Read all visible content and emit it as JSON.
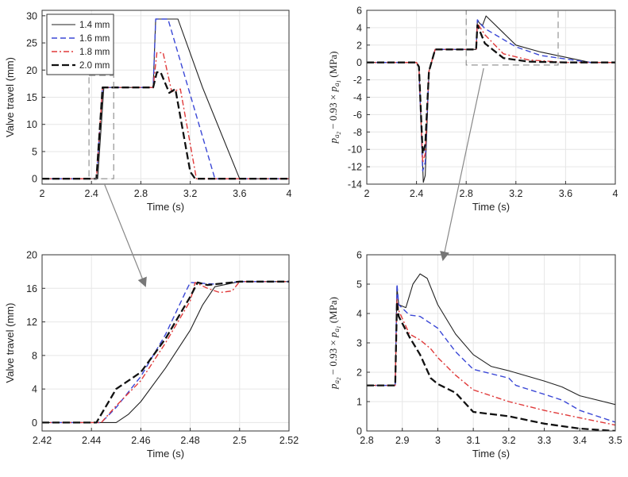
{
  "chart_data": [
    {
      "type": "line",
      "panel": "top-left",
      "xlabel": "Time (s)",
      "ylabel": "Valve travel (mm)",
      "xlim": [
        2,
        4
      ],
      "ylim": [
        -1,
        31
      ],
      "xticks": [
        2,
        2.4,
        2.8,
        3.2,
        3.6,
        4
      ],
      "xtick_labels": [
        "2",
        "2.4",
        "2.8",
        "3.2",
        "3.6",
        "4"
      ],
      "yticks": [
        0,
        5,
        10,
        15,
        20,
        25,
        30
      ],
      "ytick_labels": [
        "0",
        "5",
        "10",
        "15",
        "20",
        "25",
        "30"
      ],
      "legend": {
        "position": "top-left"
      },
      "zoom_box": {
        "x": [
          2.38,
          2.58
        ],
        "y": [
          0,
          19
        ]
      },
      "series": [
        {
          "name": "1.4 mm",
          "color": "#222222",
          "dash": "solid",
          "x": [
            2,
            2.45,
            2.5,
            2.9,
            2.92,
            3.1,
            3.3,
            3.6,
            3.62,
            4
          ],
          "y": [
            0,
            0,
            16.8,
            16.8,
            29.4,
            29.4,
            16.8,
            0,
            0,
            0
          ]
        },
        {
          "name": "1.6 mm",
          "color": "#3b48d6",
          "dash": "dashed",
          "x": [
            2,
            2.44,
            2.49,
            2.9,
            2.92,
            3.02,
            3.4,
            3.44,
            4
          ],
          "y": [
            0,
            0,
            16.8,
            16.8,
            29.4,
            29.4,
            0,
            0,
            0
          ]
        },
        {
          "name": "1.8 mm",
          "color": "#e03a3a",
          "dash": "dashdot",
          "x": [
            2,
            2.44,
            2.49,
            2.9,
            2.93,
            2.98,
            3.05,
            3.12,
            3.25,
            4
          ],
          "y": [
            0,
            0,
            16.8,
            16.8,
            23.2,
            23.2,
            16,
            16.5,
            0,
            0
          ]
        },
        {
          "name": "2.0 mm",
          "color": "#111111",
          "dash": "longdash",
          "x": [
            2,
            2.44,
            2.49,
            2.9,
            2.93,
            2.96,
            3.03,
            3.08,
            3.2,
            3.24,
            4
          ],
          "y": [
            0,
            0,
            16.8,
            16.8,
            19.6,
            19.6,
            15.8,
            16.5,
            1.3,
            0,
            0
          ]
        }
      ]
    },
    {
      "type": "line",
      "panel": "top-right",
      "xlabel": "Time (s)",
      "ylabel_parts": {
        "p1": "p",
        "sub1": "a",
        "sub1b": "2",
        "mid": " − 0.93 × ",
        "p2": "p",
        "sub2": "a",
        "sub2b": "1",
        "unit": " (MPa)"
      },
      "xlim": [
        2,
        4
      ],
      "ylim": [
        -14,
        6
      ],
      "xticks": [
        2,
        2.4,
        2.8,
        3.2,
        3.6,
        4
      ],
      "xtick_labels": [
        "2",
        "2.4",
        "2.8",
        "3.2",
        "3.6",
        "4"
      ],
      "yticks": [
        -14,
        -12,
        -10,
        -8,
        -6,
        -4,
        -2,
        0,
        2,
        4,
        6
      ],
      "ytick_labels": [
        "-14",
        "-12",
        "-10",
        "-8",
        "-6",
        "-4",
        "-2",
        "0",
        "2",
        "4",
        "6"
      ],
      "zoom_box": {
        "x": [
          2.8,
          3.54
        ],
        "y": [
          -0.3,
          6
        ]
      },
      "series": [
        {
          "name": "1.4 mm",
          "color": "#222222",
          "dash": "solid",
          "x": [
            2,
            2.4,
            2.42,
            2.455,
            2.47,
            2.5,
            2.55,
            2.88,
            2.89,
            2.93,
            2.96,
            3.2,
            3.4,
            3.8,
            4
          ],
          "y": [
            0,
            0,
            -0.5,
            -13.8,
            -13,
            -1,
            1.5,
            1.5,
            4.8,
            4.2,
            5.35,
            2,
            1.2,
            0,
            0
          ]
        },
        {
          "name": "1.6 mm",
          "color": "#3b48d6",
          "dash": "dashed",
          "x": [
            2,
            2.4,
            2.42,
            2.45,
            2.47,
            2.5,
            2.55,
            2.88,
            2.89,
            2.95,
            3.2,
            3.4,
            3.8,
            4
          ],
          "y": [
            0,
            0,
            -0.5,
            -12.5,
            -11.5,
            -1,
            1.5,
            1.5,
            4.9,
            3.9,
            1.8,
            0.8,
            0,
            0
          ]
        },
        {
          "name": "1.8 mm",
          "color": "#e03a3a",
          "dash": "dashdot",
          "x": [
            2,
            2.4,
            2.42,
            2.45,
            2.47,
            2.5,
            2.55,
            2.88,
            2.89,
            2.95,
            3.1,
            3.3,
            3.6,
            4
          ],
          "y": [
            0,
            0,
            -0.5,
            -11.5,
            -10.5,
            -1,
            1.5,
            1.5,
            4.5,
            3.2,
            1,
            0.3,
            0,
            0
          ]
        },
        {
          "name": "2.0 mm",
          "color": "#111111",
          "dash": "longdash",
          "x": [
            2,
            2.4,
            2.42,
            2.45,
            2.47,
            2.5,
            2.55,
            2.88,
            2.89,
            2.95,
            3.1,
            3.3,
            3.6,
            4
          ],
          "y": [
            0,
            0,
            -0.5,
            -10.5,
            -9.5,
            -1,
            1.5,
            1.5,
            4.3,
            2.2,
            0.5,
            0.1,
            0,
            0
          ]
        }
      ]
    },
    {
      "type": "line",
      "panel": "bottom-left",
      "xlabel": "Time (s)",
      "ylabel": "Valve travel (mm)",
      "xlim": [
        2.42,
        2.52
      ],
      "ylim": [
        -1,
        20
      ],
      "xticks": [
        2.42,
        2.44,
        2.46,
        2.48,
        2.5,
        2.52
      ],
      "xtick_labels": [
        "2.42",
        "2.44",
        "2.46",
        "2.48",
        "2.5",
        "2.52"
      ],
      "yticks": [
        0,
        4,
        8,
        12,
        16,
        20
      ],
      "ytick_labels": [
        "0",
        "4",
        "8",
        "12",
        "16",
        "20"
      ],
      "series": [
        {
          "name": "1.4 mm",
          "color": "#222222",
          "dash": "solid",
          "x": [
            2.42,
            2.45,
            2.455,
            2.46,
            2.47,
            2.48,
            2.485,
            2.49,
            2.5,
            2.52
          ],
          "y": [
            0,
            0,
            1,
            2.5,
            6.5,
            11,
            14,
            16.2,
            16.8,
            16.8
          ]
        },
        {
          "name": "1.6 mm",
          "color": "#3b48d6",
          "dash": "dashed",
          "x": [
            2.42,
            2.444,
            2.45,
            2.46,
            2.47,
            2.478,
            2.48,
            2.49,
            2.5,
            2.52
          ],
          "y": [
            0,
            0,
            1.8,
            5.5,
            10.5,
            15.5,
            16.7,
            16.5,
            16.8,
            16.8
          ]
        },
        {
          "name": "1.8 mm",
          "color": "#e03a3a",
          "dash": "dashdot",
          "x": [
            2.42,
            2.444,
            2.45,
            2.46,
            2.47,
            2.48,
            2.482,
            2.487,
            2.492,
            2.497,
            2.5,
            2.52
          ],
          "y": [
            0,
            0,
            2,
            5,
            9.5,
            14.5,
            16.7,
            16,
            15.5,
            15.7,
            16.8,
            16.8
          ]
        },
        {
          "name": "2.0 mm",
          "color": "#111111",
          "dash": "longdash",
          "x": [
            2.42,
            2.442,
            2.447,
            2.45,
            2.46,
            2.47,
            2.48,
            2.483,
            2.487,
            2.5,
            2.52
          ],
          "y": [
            0,
            0,
            2.5,
            4,
            6,
            10,
            15,
            16.7,
            16.4,
            16.8,
            16.8
          ]
        }
      ]
    },
    {
      "type": "line",
      "panel": "bottom-right",
      "xlabel": "Time (s)",
      "ylabel_parts": {
        "p1": "p",
        "sub1": "a",
        "sub1b": "2",
        "mid": " − 0.93 × ",
        "p2": "p",
        "sub2": "a",
        "sub2b": "1",
        "unit": " (MPa)"
      },
      "xlim": [
        2.8,
        3.5
      ],
      "ylim": [
        0,
        6
      ],
      "xticks": [
        2.8,
        2.9,
        3,
        3.1,
        3.2,
        3.3,
        3.4,
        3.5
      ],
      "xtick_labels": [
        "2.8",
        "2.9",
        "3",
        "3.1",
        "3.2",
        "3.3",
        "3.4",
        "3.5"
      ],
      "yticks": [
        0,
        1,
        2,
        3,
        4,
        5,
        6
      ],
      "ytick_labels": [
        "0",
        "1",
        "2",
        "3",
        "4",
        "5",
        "6"
      ],
      "series": [
        {
          "name": "1.4 mm",
          "color": "#222222",
          "dash": "solid",
          "x": [
            2.8,
            2.88,
            2.885,
            2.89,
            2.91,
            2.93,
            2.95,
            2.97,
            3,
            3.05,
            3.1,
            3.15,
            3.2,
            3.3,
            3.35,
            3.4,
            3.5
          ],
          "y": [
            1.55,
            1.55,
            4.9,
            4.3,
            4.2,
            5,
            5.35,
            5.2,
            4.3,
            3.3,
            2.6,
            2.2,
            2.05,
            1.7,
            1.5,
            1.2,
            0.9
          ]
        },
        {
          "name": "1.6 mm",
          "color": "#3b48d6",
          "dash": "dashed",
          "x": [
            2.8,
            2.88,
            2.885,
            2.89,
            2.92,
            2.95,
            3,
            3.05,
            3.1,
            3.2,
            3.22,
            3.3,
            3.35,
            3.4,
            3.5
          ],
          "y": [
            1.55,
            1.55,
            5,
            4.3,
            3.95,
            3.9,
            3.5,
            2.7,
            2.1,
            1.8,
            1.55,
            1.25,
            1.05,
            0.7,
            0.3
          ]
        },
        {
          "name": "1.8 mm",
          "color": "#e03a3a",
          "dash": "dashdot",
          "x": [
            2.8,
            2.88,
            2.885,
            2.89,
            2.92,
            2.95,
            2.98,
            3,
            3.05,
            3.1,
            3.2,
            3.3,
            3.4,
            3.5
          ],
          "y": [
            1.55,
            1.55,
            4.5,
            4.1,
            3.3,
            3.1,
            2.8,
            2.5,
            1.9,
            1.4,
            1.0,
            0.7,
            0.45,
            0.2
          ]
        },
        {
          "name": "2.0 mm",
          "color": "#111111",
          "dash": "longdash",
          "x": [
            2.8,
            2.88,
            2.885,
            2.89,
            2.92,
            2.95,
            2.98,
            3,
            3.05,
            3.1,
            3.2,
            3.3,
            3.4,
            3.5
          ],
          "y": [
            1.55,
            1.55,
            4.4,
            3.9,
            3.2,
            2.6,
            1.8,
            1.6,
            1.3,
            0.65,
            0.5,
            0.25,
            0.08,
            0
          ]
        }
      ]
    }
  ]
}
